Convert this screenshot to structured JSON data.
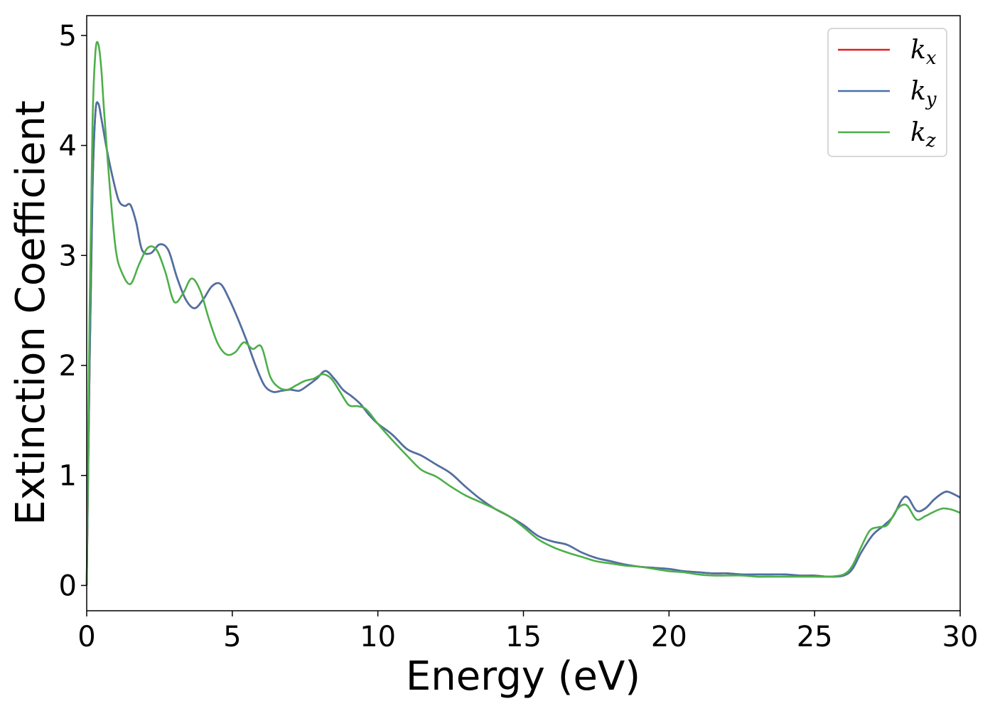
{
  "chart_data": {
    "type": "line",
    "title": "",
    "xlabel": "Energy (eV)",
    "ylabel": "Extinction Coefficient",
    "xlim": [
      0,
      30
    ],
    "ylim": [
      -0.23,
      5.18
    ],
    "xticks": [
      0,
      5,
      10,
      15,
      20,
      25,
      30
    ],
    "yticks": [
      0,
      1,
      2,
      3,
      4,
      5
    ],
    "grid": false,
    "legend_position": "top-right",
    "series": [
      {
        "name": "k",
        "subscript": "x",
        "color": "#e41a1c",
        "x": [
          0,
          0.1,
          0.2,
          0.3,
          0.4,
          0.5,
          0.7,
          0.9,
          1.1,
          1.3,
          1.5,
          1.7,
          1.9,
          2.2,
          2.5,
          2.8,
          3.1,
          3.4,
          3.7,
          4.0,
          4.3,
          4.6,
          4.9,
          5.2,
          5.5,
          5.8,
          6.1,
          6.4,
          6.7,
          7.0,
          7.3,
          7.6,
          7.9,
          8.2,
          8.5,
          8.8,
          9.1,
          9.4,
          9.7,
          10.0,
          10.5,
          11.0,
          11.5,
          12.0,
          12.5,
          13.0,
          13.5,
          14.0,
          14.5,
          15.0,
          15.5,
          16.0,
          16.5,
          17.0,
          17.5,
          18.0,
          18.5,
          19.0,
          19.5,
          20.0,
          20.5,
          21.0,
          21.5,
          22.0,
          22.5,
          23.0,
          23.5,
          24.0,
          24.5,
          25.0,
          25.5,
          26.0,
          26.3,
          26.6,
          27.0,
          27.4,
          27.7,
          28.0,
          28.2,
          28.5,
          28.8,
          29.1,
          29.4,
          29.6,
          30.0
        ],
        "y": [
          0,
          2.0,
          3.6,
          4.3,
          4.38,
          4.25,
          3.95,
          3.7,
          3.5,
          3.45,
          3.46,
          3.3,
          3.05,
          3.02,
          3.1,
          3.05,
          2.8,
          2.6,
          2.52,
          2.6,
          2.72,
          2.74,
          2.6,
          2.42,
          2.22,
          2.0,
          1.82,
          1.76,
          1.77,
          1.78,
          1.77,
          1.82,
          1.88,
          1.95,
          1.88,
          1.78,
          1.72,
          1.65,
          1.55,
          1.47,
          1.37,
          1.24,
          1.18,
          1.1,
          1.02,
          0.9,
          0.79,
          0.7,
          0.63,
          0.55,
          0.45,
          0.4,
          0.37,
          0.3,
          0.25,
          0.22,
          0.19,
          0.17,
          0.16,
          0.15,
          0.13,
          0.12,
          0.11,
          0.11,
          0.1,
          0.1,
          0.1,
          0.1,
          0.09,
          0.09,
          0.08,
          0.09,
          0.15,
          0.3,
          0.46,
          0.55,
          0.63,
          0.78,
          0.8,
          0.68,
          0.7,
          0.78,
          0.84,
          0.85,
          0.8
        ]
      },
      {
        "name": "k",
        "subscript": "y",
        "color": "#4a72a6",
        "x": [
          0,
          0.1,
          0.2,
          0.3,
          0.4,
          0.5,
          0.7,
          0.9,
          1.1,
          1.3,
          1.5,
          1.7,
          1.9,
          2.2,
          2.5,
          2.8,
          3.1,
          3.4,
          3.7,
          4.0,
          4.3,
          4.6,
          4.9,
          5.2,
          5.5,
          5.8,
          6.1,
          6.4,
          6.7,
          7.0,
          7.3,
          7.6,
          7.9,
          8.2,
          8.5,
          8.8,
          9.1,
          9.4,
          9.7,
          10.0,
          10.5,
          11.0,
          11.5,
          12.0,
          12.5,
          13.0,
          13.5,
          14.0,
          14.5,
          15.0,
          15.5,
          16.0,
          16.5,
          17.0,
          17.5,
          18.0,
          18.5,
          19.0,
          19.5,
          20.0,
          20.5,
          21.0,
          21.5,
          22.0,
          22.5,
          23.0,
          23.5,
          24.0,
          24.5,
          25.0,
          25.5,
          26.0,
          26.3,
          26.6,
          27.0,
          27.4,
          27.7,
          28.0,
          28.2,
          28.5,
          28.8,
          29.1,
          29.4,
          29.6,
          30.0
        ],
        "y": [
          0,
          2.0,
          3.6,
          4.3,
          4.38,
          4.25,
          3.95,
          3.7,
          3.5,
          3.45,
          3.46,
          3.3,
          3.05,
          3.02,
          3.1,
          3.05,
          2.8,
          2.6,
          2.52,
          2.6,
          2.72,
          2.74,
          2.6,
          2.42,
          2.22,
          2.0,
          1.82,
          1.76,
          1.77,
          1.78,
          1.77,
          1.82,
          1.88,
          1.95,
          1.88,
          1.78,
          1.72,
          1.65,
          1.55,
          1.47,
          1.37,
          1.24,
          1.18,
          1.1,
          1.02,
          0.9,
          0.79,
          0.7,
          0.63,
          0.55,
          0.45,
          0.4,
          0.37,
          0.3,
          0.25,
          0.22,
          0.19,
          0.17,
          0.16,
          0.15,
          0.13,
          0.12,
          0.11,
          0.11,
          0.1,
          0.1,
          0.1,
          0.1,
          0.09,
          0.09,
          0.08,
          0.09,
          0.15,
          0.3,
          0.46,
          0.55,
          0.63,
          0.78,
          0.8,
          0.68,
          0.7,
          0.78,
          0.84,
          0.85,
          0.8
        ]
      },
      {
        "name": "k",
        "subscript": "z",
        "color": "#4daf4a",
        "x": [
          0,
          0.1,
          0.2,
          0.3,
          0.4,
          0.5,
          0.6,
          0.8,
          1.0,
          1.2,
          1.5,
          1.8,
          2.1,
          2.4,
          2.7,
          3.0,
          3.3,
          3.6,
          3.9,
          4.2,
          4.5,
          4.8,
          5.1,
          5.4,
          5.7,
          6.0,
          6.3,
          6.6,
          6.9,
          7.2,
          7.5,
          7.8,
          8.1,
          8.4,
          8.7,
          9.0,
          9.3,
          9.6,
          10.0,
          10.5,
          11.0,
          11.5,
          12.0,
          12.5,
          13.0,
          13.5,
          14.0,
          14.5,
          15.0,
          15.5,
          16.0,
          16.5,
          17.0,
          17.5,
          18.0,
          18.5,
          19.0,
          19.5,
          20.0,
          20.5,
          21.0,
          21.5,
          22.0,
          22.5,
          23.0,
          23.5,
          24.0,
          24.5,
          25.0,
          25.5,
          26.0,
          26.3,
          26.6,
          26.9,
          27.2,
          27.5,
          27.8,
          28.0,
          28.2,
          28.5,
          28.8,
          29.1,
          29.4,
          29.7,
          30.0
        ],
        "y": [
          0,
          2.5,
          4.2,
          4.85,
          4.92,
          4.7,
          4.3,
          3.6,
          3.05,
          2.85,
          2.74,
          2.92,
          3.07,
          3.05,
          2.85,
          2.58,
          2.65,
          2.79,
          2.68,
          2.42,
          2.2,
          2.1,
          2.12,
          2.21,
          2.15,
          2.17,
          1.9,
          1.8,
          1.78,
          1.82,
          1.86,
          1.88,
          1.92,
          1.88,
          1.76,
          1.64,
          1.63,
          1.6,
          1.47,
          1.32,
          1.18,
          1.05,
          0.99,
          0.9,
          0.82,
          0.76,
          0.7,
          0.63,
          0.53,
          0.42,
          0.35,
          0.3,
          0.26,
          0.22,
          0.2,
          0.18,
          0.17,
          0.15,
          0.13,
          0.12,
          0.1,
          0.09,
          0.09,
          0.09,
          0.08,
          0.08,
          0.08,
          0.08,
          0.08,
          0.08,
          0.1,
          0.18,
          0.35,
          0.5,
          0.53,
          0.55,
          0.68,
          0.73,
          0.72,
          0.6,
          0.63,
          0.67,
          0.7,
          0.69,
          0.66
        ]
      }
    ]
  }
}
